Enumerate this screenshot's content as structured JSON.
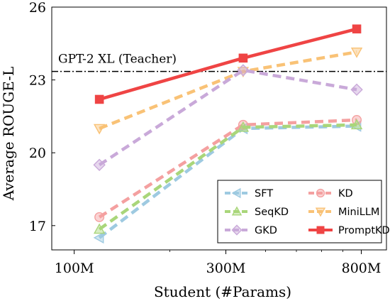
{
  "chart_data": {
    "type": "line",
    "title": "",
    "xlabel": "Student (#Params)",
    "ylabel": "Average ROUGE-L",
    "x_tick_labels": [
      "100M",
      "300M",
      "800M"
    ],
    "y_tick_labels": [
      "17",
      "20",
      "23",
      "26"
    ],
    "x_scale": "log",
    "x": [
      120,
      340,
      774
    ],
    "xlim": [
      85,
      960
    ],
    "ylim": [
      16,
      26
    ],
    "legend_position": "lower-right",
    "reference_line": {
      "label": "GPT-2 XL (Teacher)",
      "value": 23.35,
      "color": "#000000"
    },
    "series": [
      {
        "name": "SFT",
        "values": [
          16.5,
          21.0,
          21.1
        ],
        "color": "#9ecae1",
        "marker": "triangle-left",
        "style": "dashed"
      },
      {
        "name": "KD",
        "values": [
          17.35,
          21.15,
          21.35
        ],
        "color": "#f4a0a0",
        "marker": "circle",
        "style": "dashed"
      },
      {
        "name": "SeqKD",
        "values": [
          16.85,
          21.05,
          21.15
        ],
        "color": "#a9d67a",
        "marker": "triangle-up",
        "style": "dashed"
      },
      {
        "name": "MiniLLM",
        "values": [
          21.0,
          23.35,
          24.15
        ],
        "color": "#f9c276",
        "marker": "triangle-down",
        "style": "dashed"
      },
      {
        "name": "GKD",
        "values": [
          19.5,
          23.4,
          22.6
        ],
        "color": "#c9a9d9",
        "marker": "diamond",
        "style": "dashed"
      },
      {
        "name": "PromptKD",
        "values": [
          22.2,
          23.9,
          25.1
        ],
        "color": "#ef4444",
        "marker": "square",
        "style": "solid"
      }
    ]
  }
}
